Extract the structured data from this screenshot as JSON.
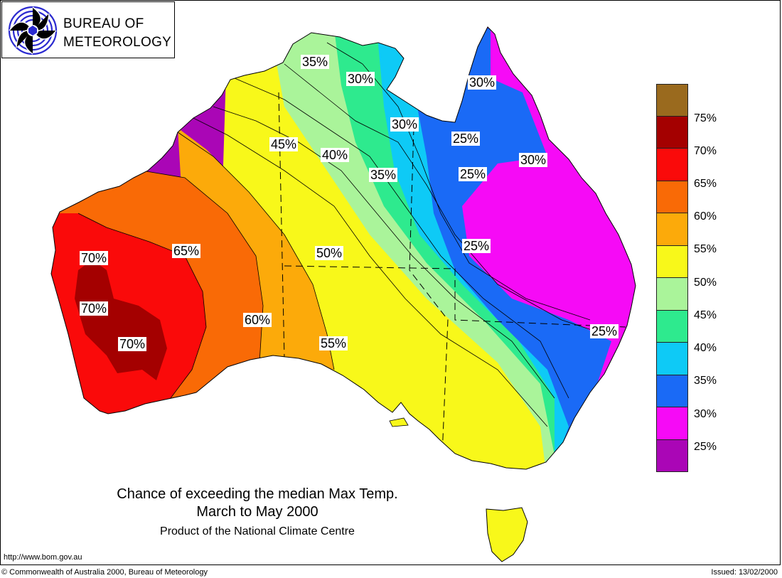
{
  "logo": {
    "line1": "BUREAU OF",
    "line2": "METEOROLOGY"
  },
  "title": {
    "line1": "Chance of exceeding the median Max Temp.",
    "line2": "March to May 2000",
    "line3": "Product of the National Climate Centre"
  },
  "footer": {
    "url": "http://www.bom.gov.au",
    "copyright": "© Commonwealth of Australia 2000, Bureau of Meteorology",
    "issued": "Issued: 13/02/2000"
  },
  "legend": {
    "items": [
      {
        "label": "75%",
        "color": "#9a6a1e"
      },
      {
        "label": "70%",
        "color": "#a40000"
      },
      {
        "label": "65%",
        "color": "#fa0a0a"
      },
      {
        "label": "60%",
        "color": "#f96a06"
      },
      {
        "label": "55%",
        "color": "#fcaa0a"
      },
      {
        "label": "50%",
        "color": "#f8f81a"
      },
      {
        "label": "45%",
        "color": "#aaf49a"
      },
      {
        "label": "40%",
        "color": "#2eea8e"
      },
      {
        "label": "35%",
        "color": "#0ecaf6"
      },
      {
        "label": "30%",
        "color": "#1a6af6"
      },
      {
        "label": "25%",
        "color": "#f60af6"
      },
      {
        "label": "",
        "color": "#aa06b6"
      }
    ]
  },
  "map_labels": [
    "35%",
    "30%",
    "30%",
    "30%",
    "25%",
    "30%",
    "45%",
    "40%",
    "35%",
    "25%",
    "70%",
    "65%",
    "50%",
    "25%",
    "70%",
    "60%",
    "55%",
    "25%",
    "70%"
  ]
}
